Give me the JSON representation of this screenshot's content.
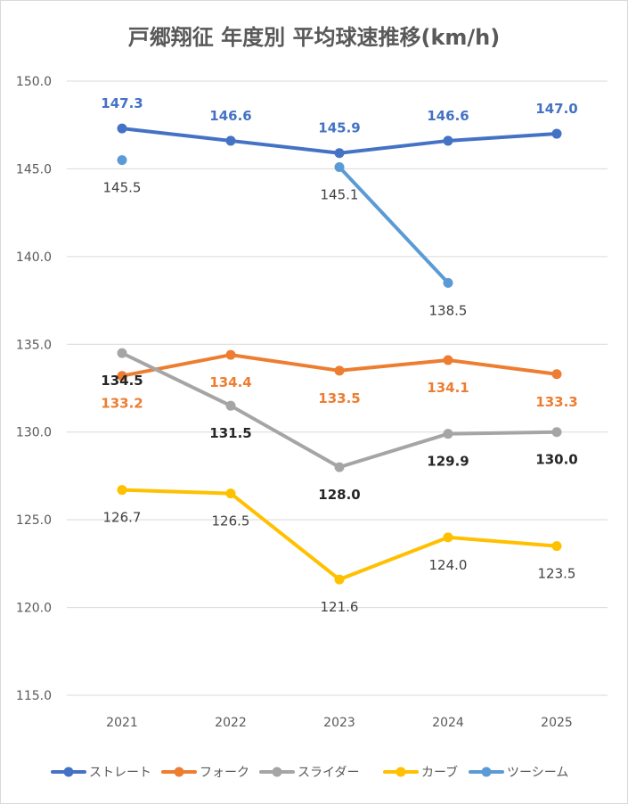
{
  "chart_data": {
    "type": "line",
    "title": "戸郷翔征 年度別 平均球速推移(km/h)",
    "xlabel": "",
    "ylabel": "",
    "categories": [
      "2021",
      "2022",
      "2023",
      "2024",
      "2025"
    ],
    "ylim": [
      115.0,
      150.0
    ],
    "yticks": [
      "115.0",
      "120.0",
      "125.0",
      "130.0",
      "135.0",
      "140.0",
      "145.0",
      "150.0"
    ],
    "grid": true,
    "legend_position": "bottom",
    "series": [
      {
        "name": "ストレート",
        "color": "#4472C4",
        "values": [
          147.3,
          146.6,
          145.9,
          146.6,
          147.0
        ],
        "labels": [
          "147.3",
          "146.6",
          "145.9",
          "146.6",
          "147.0"
        ],
        "label_color": "#4472C4",
        "label_bold": true,
        "label_position": "above"
      },
      {
        "name": "フォーク",
        "color": "#ED7D31",
        "values": [
          133.2,
          134.4,
          133.5,
          134.1,
          133.3
        ],
        "labels": [
          "133.2",
          "134.4",
          "133.5",
          "134.1",
          "133.3"
        ],
        "label_color": "#ED7D31",
        "label_bold": true,
        "label_position": "below"
      },
      {
        "name": "スライダー",
        "color": "#A5A5A5",
        "values": [
          134.5,
          131.5,
          128.0,
          129.9,
          130.0
        ],
        "labels": [
          "134.5",
          "131.5",
          "128.0",
          "129.9",
          "130.0"
        ],
        "label_color": "#262626",
        "label_bold": true,
        "label_position": "below"
      },
      {
        "name": "カーブ",
        "color": "#FFC000",
        "values": [
          126.7,
          126.5,
          121.6,
          124.0,
          123.5
        ],
        "labels": [
          "126.7",
          "126.5",
          "121.6",
          "124.0",
          "123.5"
        ],
        "label_color": "#404040",
        "label_bold": false,
        "label_position": "below"
      },
      {
        "name": "ツーシーム",
        "color": "#5B9BD5",
        "values": [
          145.5,
          null,
          145.1,
          138.5,
          null
        ],
        "labels": [
          "145.5",
          null,
          "145.1",
          "138.5",
          null
        ],
        "label_color": "#404040",
        "label_bold": false,
        "label_position": "below"
      }
    ]
  }
}
